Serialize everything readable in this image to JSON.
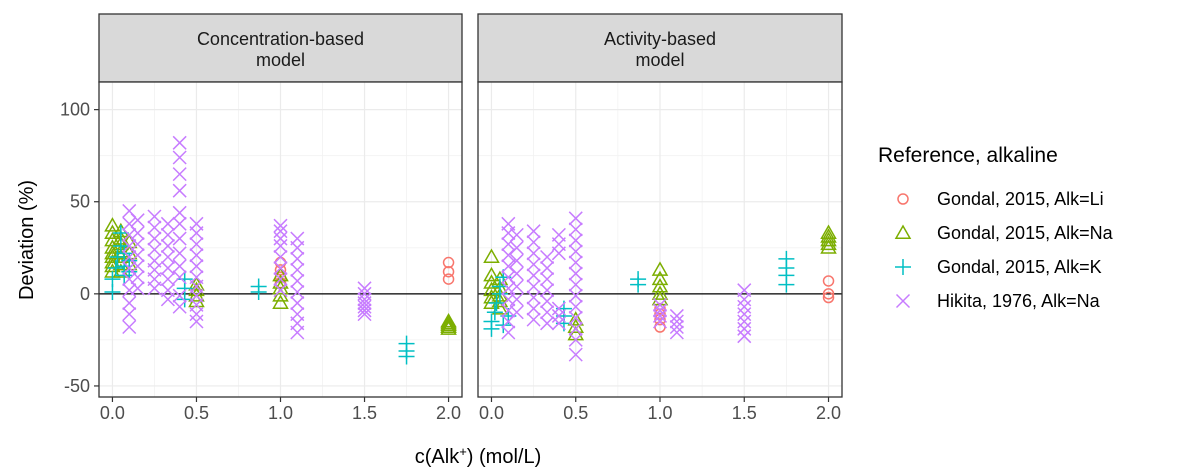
{
  "chart_data": {
    "type": "scatter",
    "facets": [
      "Concentration-based\nmodel",
      "Activity-based\nmodel"
    ],
    "xlabel_main": "c(Alk",
    "xlabel_sup": "+",
    "xlabel_tail": ") (mol/L)",
    "ylabel": "Deviation (%)",
    "xlim": [
      -0.08,
      2.08
    ],
    "ylim": [
      -56,
      115
    ],
    "x_ticks": [
      0.0,
      0.5,
      1.0,
      1.5,
      2.0
    ],
    "x_tick_labels": [
      "0.0",
      "0.5",
      "1.0",
      "1.5",
      "2.0"
    ],
    "y_ticks": [
      -50,
      0,
      50,
      100
    ],
    "y_tick_labels": [
      "-50",
      "0",
      "50",
      "100"
    ],
    "hline": 0,
    "grid": true,
    "legend_title": "Reference, alkaline",
    "legend_position": "right",
    "series": [
      {
        "name": "Gondal, 2015, Alk=Li",
        "shape": "circle",
        "color": "#f8766d",
        "points": [
          [
            [
              1.0,
              17
            ],
            [
              1.0,
              13
            ],
            [
              1.0,
              9
            ],
            [
              1.0,
              6
            ],
            [
              2.0,
              17
            ],
            [
              2.0,
              12
            ],
            [
              2.0,
              8
            ]
          ],
          [
            [
              1.0,
              -8
            ],
            [
              1.0,
              -11
            ],
            [
              1.0,
              -14
            ],
            [
              1.0,
              -18
            ],
            [
              2.0,
              7
            ],
            [
              2.0,
              0
            ],
            [
              2.0,
              -2
            ]
          ]
        ]
      },
      {
        "name": "Gondal, 2015, Alk=Na",
        "shape": "triangle",
        "color": "#7cae00",
        "points": [
          [
            [
              0.0,
              37
            ],
            [
              0.0,
              33
            ],
            [
              0.0,
              29
            ],
            [
              0.0,
              25
            ],
            [
              0.0,
              22
            ],
            [
              0.0,
              20
            ],
            [
              0.0,
              17
            ],
            [
              0.0,
              15
            ],
            [
              0.0,
              12
            ],
            [
              0.05,
              34
            ],
            [
              0.05,
              30
            ],
            [
              0.05,
              27
            ],
            [
              0.05,
              23
            ],
            [
              0.05,
              20
            ],
            [
              0.05,
              16
            ],
            [
              0.05,
              12
            ],
            [
              0.1,
              28
            ],
            [
              0.1,
              22
            ],
            [
              0.1,
              16
            ],
            [
              0.5,
              5
            ],
            [
              0.5,
              2
            ],
            [
              0.5,
              -1
            ],
            [
              0.5,
              -4
            ],
            [
              1.0,
              10
            ],
            [
              1.0,
              6
            ],
            [
              1.0,
              3
            ],
            [
              1.0,
              -1
            ],
            [
              1.0,
              -5
            ],
            [
              2.0,
              -15
            ],
            [
              2.0,
              -16
            ],
            [
              2.0,
              -17
            ],
            [
              2.0,
              -18
            ],
            [
              2.0,
              -19
            ]
          ],
          [
            [
              0.0,
              20
            ],
            [
              0.0,
              10
            ],
            [
              0.0,
              6
            ],
            [
              0.0,
              2
            ],
            [
              0.0,
              -2
            ],
            [
              0.0,
              -5
            ],
            [
              0.05,
              8
            ],
            [
              0.05,
              3
            ],
            [
              0.05,
              -1
            ],
            [
              0.05,
              -4
            ],
            [
              0.05,
              -8
            ],
            [
              0.5,
              -14
            ],
            [
              0.5,
              -18
            ],
            [
              0.5,
              -22
            ],
            [
              1.0,
              13
            ],
            [
              1.0,
              8
            ],
            [
              1.0,
              4
            ],
            [
              1.0,
              0
            ],
            [
              1.0,
              -3
            ],
            [
              2.0,
              33
            ],
            [
              2.0,
              31
            ],
            [
              2.0,
              29
            ],
            [
              2.0,
              27
            ],
            [
              2.0,
              25
            ]
          ]
        ]
      },
      {
        "name": "Gondal, 2015, Alk=K",
        "shape": "plus",
        "color": "#00bfc4",
        "points": [
          [
            [
              0.0,
              1
            ],
            [
              0.0,
              8
            ],
            [
              0.02,
              14
            ],
            [
              0.03,
              20
            ],
            [
              0.05,
              26
            ],
            [
              0.05,
              33
            ],
            [
              0.07,
              22
            ],
            [
              0.07,
              15
            ],
            [
              0.07,
              10
            ],
            [
              0.1,
              18
            ],
            [
              0.1,
              12
            ],
            [
              0.43,
              8
            ],
            [
              0.43,
              3
            ],
            [
              0.43,
              -3
            ],
            [
              0.87,
              4
            ],
            [
              0.87,
              1
            ],
            [
              1.75,
              -27
            ],
            [
              1.75,
              -31
            ],
            [
              1.75,
              -34
            ]
          ],
          [
            [
              0.0,
              -19
            ],
            [
              0.0,
              -15
            ],
            [
              0.02,
              -10
            ],
            [
              0.03,
              -5
            ],
            [
              0.05,
              0
            ],
            [
              0.05,
              4
            ],
            [
              0.07,
              9
            ],
            [
              0.07,
              -17
            ],
            [
              0.1,
              -12
            ],
            [
              0.43,
              -8
            ],
            [
              0.43,
              -12
            ],
            [
              0.43,
              -16
            ],
            [
              0.87,
              8
            ],
            [
              0.87,
              5
            ],
            [
              1.75,
              19
            ],
            [
              1.75,
              14
            ],
            [
              1.75,
              10
            ],
            [
              1.75,
              5
            ]
          ]
        ]
      },
      {
        "name": "Hikita, 1976, Alk=Na",
        "shape": "cross",
        "color": "#c77cff",
        "points": [
          [
            [
              0.1,
              45
            ],
            [
              0.1,
              38
            ],
            [
              0.1,
              32
            ],
            [
              0.1,
              26
            ],
            [
              0.1,
              20
            ],
            [
              0.1,
              14
            ],
            [
              0.1,
              8
            ],
            [
              0.1,
              2
            ],
            [
              0.1,
              -5
            ],
            [
              0.1,
              -11
            ],
            [
              0.1,
              -18
            ],
            [
              0.15,
              40
            ],
            [
              0.15,
              33
            ],
            [
              0.15,
              27
            ],
            [
              0.15,
              21
            ],
            [
              0.15,
              15
            ],
            [
              0.15,
              9
            ],
            [
              0.15,
              3
            ],
            [
              0.25,
              42
            ],
            [
              0.25,
              36
            ],
            [
              0.25,
              30
            ],
            [
              0.25,
              24
            ],
            [
              0.25,
              18
            ],
            [
              0.25,
              13
            ],
            [
              0.25,
              8
            ],
            [
              0.25,
              3
            ],
            [
              0.33,
              38
            ],
            [
              0.33,
              32
            ],
            [
              0.33,
              26
            ],
            [
              0.33,
              20
            ],
            [
              0.33,
              14
            ],
            [
              0.33,
              8
            ],
            [
              0.33,
              2
            ],
            [
              0.33,
              -3
            ],
            [
              0.4,
              82
            ],
            [
              0.4,
              74
            ],
            [
              0.4,
              65
            ],
            [
              0.4,
              56
            ],
            [
              0.4,
              44
            ],
            [
              0.4,
              38
            ],
            [
              0.4,
              30
            ],
            [
              0.4,
              22
            ],
            [
              0.4,
              15
            ],
            [
              0.4,
              9
            ],
            [
              0.4,
              -1
            ],
            [
              0.4,
              -7
            ],
            [
              0.5,
              38
            ],
            [
              0.5,
              33
            ],
            [
              0.5,
              27
            ],
            [
              0.5,
              21
            ],
            [
              0.5,
              15
            ],
            [
              0.5,
              9
            ],
            [
              0.5,
              4
            ],
            [
              0.5,
              -1
            ],
            [
              0.5,
              -6
            ],
            [
              0.5,
              -11
            ],
            [
              0.5,
              -15
            ],
            [
              1.0,
              37
            ],
            [
              1.0,
              34
            ],
            [
              1.0,
              30
            ],
            [
              1.0,
              26
            ],
            [
              1.0,
              20
            ],
            [
              1.0,
              14
            ],
            [
              1.0,
              8
            ],
            [
              1.0,
              2
            ],
            [
              1.1,
              30
            ],
            [
              1.1,
              25
            ],
            [
              1.1,
              19
            ],
            [
              1.1,
              13
            ],
            [
              1.1,
              7
            ],
            [
              1.1,
              1
            ],
            [
              1.1,
              -5
            ],
            [
              1.1,
              -11
            ],
            [
              1.1,
              -16
            ],
            [
              1.1,
              -21
            ],
            [
              1.5,
              3
            ],
            [
              1.5,
              0
            ],
            [
              1.5,
              -3
            ],
            [
              1.5,
              -5
            ],
            [
              1.5,
              -7
            ],
            [
              1.5,
              -9
            ],
            [
              1.5,
              -11
            ]
          ],
          [
            [
              0.1,
              38
            ],
            [
              0.1,
              33
            ],
            [
              0.1,
              27
            ],
            [
              0.1,
              21
            ],
            [
              0.1,
              15
            ],
            [
              0.1,
              9
            ],
            [
              0.1,
              3
            ],
            [
              0.1,
              -3
            ],
            [
              0.1,
              -9
            ],
            [
              0.1,
              -15
            ],
            [
              0.1,
              -21
            ],
            [
              0.15,
              32
            ],
            [
              0.15,
              25
            ],
            [
              0.15,
              18
            ],
            [
              0.15,
              11
            ],
            [
              0.15,
              4
            ],
            [
              0.15,
              -3
            ],
            [
              0.15,
              -10
            ],
            [
              0.25,
              34
            ],
            [
              0.25,
              28
            ],
            [
              0.25,
              22
            ],
            [
              0.25,
              16
            ],
            [
              0.25,
              10
            ],
            [
              0.25,
              4
            ],
            [
              0.25,
              -2
            ],
            [
              0.25,
              -8
            ],
            [
              0.25,
              -14
            ],
            [
              0.33,
              20
            ],
            [
              0.33,
              14
            ],
            [
              0.33,
              8
            ],
            [
              0.33,
              2
            ],
            [
              0.33,
              -4
            ],
            [
              0.33,
              -10
            ],
            [
              0.33,
              -16
            ],
            [
              0.4,
              32
            ],
            [
              0.4,
              27
            ],
            [
              0.4,
              22
            ],
            [
              0.4,
              -8
            ],
            [
              0.4,
              -12
            ],
            [
              0.4,
              -16
            ],
            [
              0.5,
              41
            ],
            [
              0.5,
              35
            ],
            [
              0.5,
              29
            ],
            [
              0.5,
              23
            ],
            [
              0.5,
              17
            ],
            [
              0.5,
              11
            ],
            [
              0.5,
              5
            ],
            [
              0.5,
              -1
            ],
            [
              0.5,
              -7
            ],
            [
              0.5,
              -13
            ],
            [
              0.5,
              -19
            ],
            [
              0.5,
              -25
            ],
            [
              0.5,
              -33
            ],
            [
              1.0,
              -6
            ],
            [
              1.0,
              -9
            ],
            [
              1.0,
              -12
            ],
            [
              1.0,
              -15
            ],
            [
              1.1,
              -12
            ],
            [
              1.1,
              -15
            ],
            [
              1.1,
              -18
            ],
            [
              1.1,
              -21
            ],
            [
              1.5,
              2
            ],
            [
              1.5,
              -3
            ],
            [
              1.5,
              -7
            ],
            [
              1.5,
              -11
            ],
            [
              1.5,
              -15
            ],
            [
              1.5,
              -19
            ],
            [
              1.5,
              -23
            ]
          ]
        ]
      }
    ]
  }
}
